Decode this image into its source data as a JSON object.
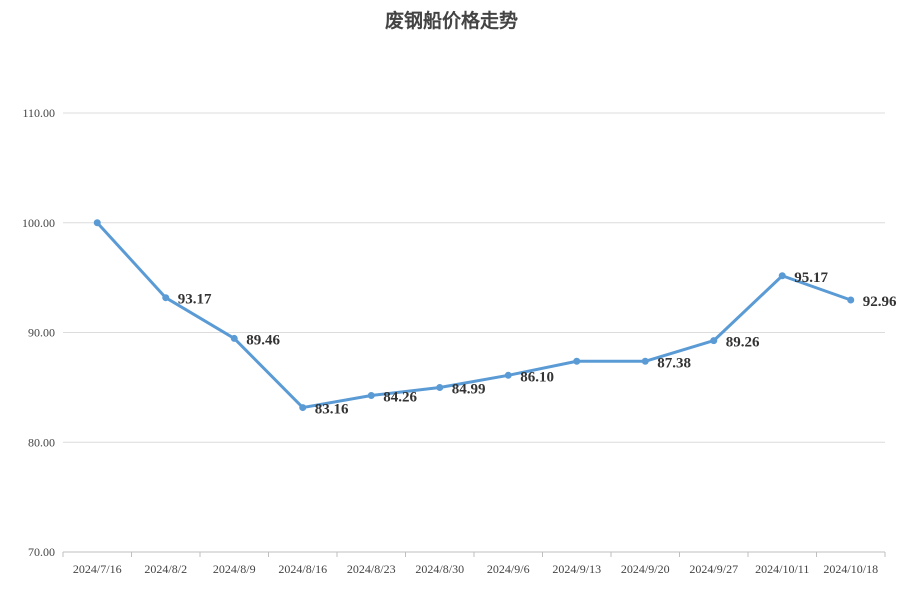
{
  "chart_data": {
    "type": "line",
    "title": "废钢船价格走势",
    "xlabel": "",
    "ylabel": "",
    "categories": [
      "2024/7/16",
      "2024/8/2",
      "2024/8/9",
      "2024/8/16",
      "2024/8/23",
      "2024/8/30",
      "2024/9/6",
      "2024/9/13",
      "2024/9/20",
      "2024/9/27",
      "2024/10/11",
      "2024/10/18"
    ],
    "series": [
      {
        "values": [
          100.0,
          93.17,
          89.46,
          83.16,
          84.26,
          84.99,
          86.1,
          87.38,
          87.38,
          89.26,
          95.17,
          92.96
        ],
        "labels": [
          "",
          "93.17",
          "89.46",
          "83.16",
          "84.26",
          "84.99",
          "86.10",
          "",
          "87.38",
          "89.26",
          "95.17",
          "92.96"
        ],
        "color": "#5b9bd5"
      }
    ],
    "ylim": [
      70,
      110
    ],
    "yticks": [
      "70.00",
      "80.00",
      "90.00",
      "100.00",
      "110.00"
    ],
    "grid": true,
    "legend": "none"
  }
}
